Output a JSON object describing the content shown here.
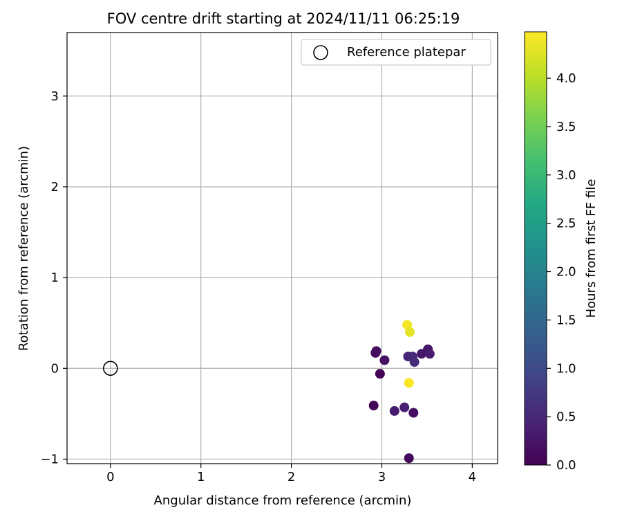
{
  "chart_data": {
    "type": "scatter",
    "title": "FOV centre drift starting at 2024/11/11 06:25:19",
    "xlabel": "Angular distance from reference (arcmin)",
    "ylabel": "Rotation from reference (arcmin)",
    "xlim": [
      -0.48,
      4.28
    ],
    "ylim": [
      -1.05,
      3.7
    ],
    "xticks": [
      0,
      1,
      2,
      3,
      4
    ],
    "yticks": [
      -1,
      0,
      1,
      2,
      3
    ],
    "xtick_labels": [
      "0",
      "1",
      "2",
      "3",
      "4"
    ],
    "ytick_labels": [
      "−1",
      "0",
      "1",
      "2",
      "3"
    ],
    "grid": true,
    "legend": {
      "position": "top-right",
      "entries": [
        "Reference platepar"
      ]
    },
    "reference": {
      "name": "Reference platepar",
      "x": 0.0,
      "y": 0.0,
      "marker": "open-circle"
    },
    "colorbar": {
      "label": "Hours from first FF file",
      "colormap": "viridis",
      "range": [
        0.0,
        4.48
      ],
      "ticks": [
        0.0,
        0.5,
        1.0,
        1.5,
        2.0,
        2.5,
        3.0,
        3.5,
        4.0
      ],
      "tick_labels": [
        "0.0",
        "0.5",
        "1.0",
        "1.5",
        "2.0",
        "2.5",
        "3.0",
        "3.5",
        "4.0"
      ]
    },
    "points": [
      {
        "x": 2.91,
        "y": -0.41,
        "c": 0.05
      },
      {
        "x": 2.93,
        "y": 0.17,
        "c": 0.1
      },
      {
        "x": 2.94,
        "y": 0.19,
        "c": 0.15
      },
      {
        "x": 2.98,
        "y": -0.06,
        "c": 0.05
      },
      {
        "x": 3.03,
        "y": 0.09,
        "c": 0.2
      },
      {
        "x": 3.14,
        "y": -0.47,
        "c": 0.35
      },
      {
        "x": 3.25,
        "y": -0.43,
        "c": 0.4
      },
      {
        "x": 3.28,
        "y": 0.48,
        "c": 4.4
      },
      {
        "x": 3.29,
        "y": 0.13,
        "c": 0.45
      },
      {
        "x": 3.3,
        "y": -0.99,
        "c": 0.1
      },
      {
        "x": 3.3,
        "y": -0.16,
        "c": 4.45
      },
      {
        "x": 3.31,
        "y": 0.4,
        "c": 4.3
      },
      {
        "x": 3.34,
        "y": 0.13,
        "c": 0.5
      },
      {
        "x": 3.35,
        "y": -0.49,
        "c": 0.15
      },
      {
        "x": 3.36,
        "y": 0.07,
        "c": 0.55
      },
      {
        "x": 3.44,
        "y": 0.16,
        "c": 0.3
      },
      {
        "x": 3.51,
        "y": 0.21,
        "c": 0.25
      },
      {
        "x": 3.53,
        "y": 0.16,
        "c": 0.35
      }
    ]
  }
}
